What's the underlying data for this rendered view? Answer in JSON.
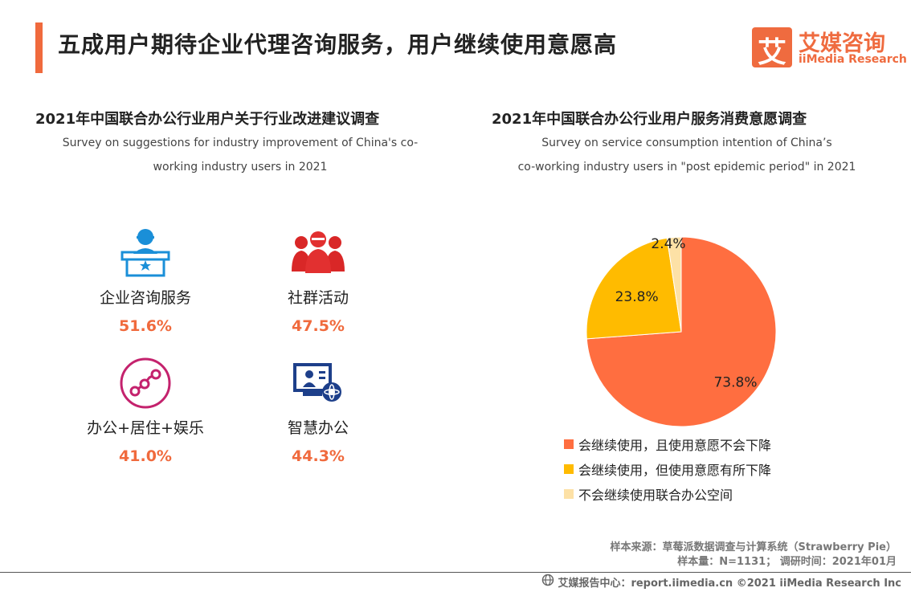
{
  "header": {
    "title": "五成用户期待企业代理咨询服务，用户继续使用意愿高",
    "logo_cn": "艾媒咨询",
    "logo_en": "iiMedia Research",
    "logo_mark": "艾"
  },
  "left_section": {
    "title": "2021年中国联合办公行业用户关于行业改进建议调查",
    "subtitle_line1": "Survey on suggestions for industry improvement of China's co-",
    "subtitle_line2": "working  industry users in 2021",
    "items": [
      {
        "label": "企业咨询服务",
        "value": "51.6%",
        "icon": "consultant-icon"
      },
      {
        "label": "社群活动",
        "value": "47.5%",
        "icon": "community-icon"
      },
      {
        "label": "办公+居住+娱乐",
        "value": "41.0%",
        "icon": "network-icon"
      },
      {
        "label": "智慧办公",
        "value": "44.3%",
        "icon": "smart-office-icon"
      }
    ]
  },
  "right_section": {
    "title": "2021年中国联合办公行业用户服务消费意愿调查",
    "subtitle_line1": "Survey on service consumption intention of China’s",
    "subtitle_line2": "co-working  industry users in \"post epidemic period\" in 2021"
  },
  "chart_data": {
    "type": "pie",
    "title": "2021年中国联合办公行业用户服务消费意愿调查",
    "series": [
      {
        "name": "会继续使用，且使用意愿不会下降",
        "value": 73.8,
        "label": "73.8%",
        "color": "#ff6e40"
      },
      {
        "name": "会继续使用，但使用意愿有所下降",
        "value": 23.8,
        "label": "23.8%",
        "color": "#ffbb00"
      },
      {
        "name": "不会继续使用联合办公空间",
        "value": 2.4,
        "label": "2.4%",
        "color": "#fde1a6"
      }
    ],
    "legend": "bottom"
  },
  "footer": {
    "source_line1": "样本来源：草莓派数据调查与计算系统（Strawberry  Pie）",
    "source_line2": "样本量：N=1131；  调研时间：2021年01月",
    "report_text": "艾媒报告中心：report.iimedia.cn   ©2021  iiMedia Research  Inc"
  }
}
